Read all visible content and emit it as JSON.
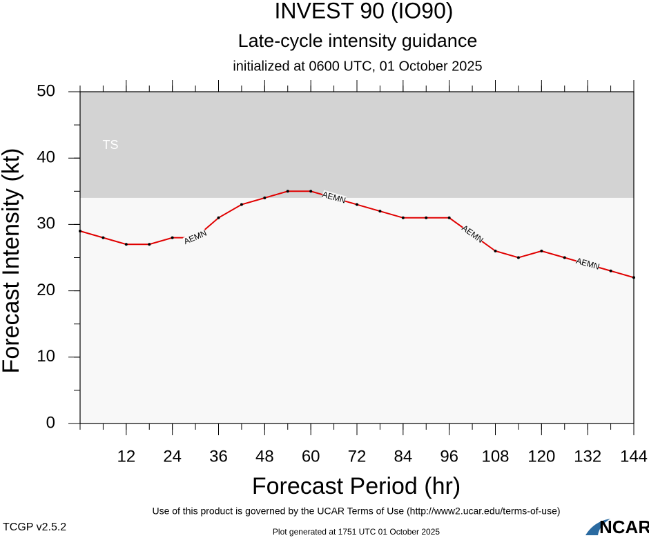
{
  "chart_data": {
    "type": "line",
    "title": "INVEST 90 (IO90)",
    "subtitle": "Late-cycle intensity guidance",
    "initialized": "initialized at 0600 UTC, 01 October 2025",
    "x_label": "Forecast Period (hr)",
    "y_label": "Forecast Intensity (kt)",
    "x": [
      0,
      6,
      12,
      18,
      24,
      30,
      36,
      42,
      48,
      54,
      60,
      66,
      72,
      78,
      84,
      90,
      96,
      102,
      108,
      114,
      120,
      126,
      132,
      138,
      144
    ],
    "series": [
      {
        "name": "AEMN",
        "color": "#e00000",
        "values": [
          29,
          28,
          27,
          27,
          28,
          28,
          31,
          33,
          34,
          35,
          35,
          34,
          33,
          32,
          31,
          31,
          31,
          28.5,
          26,
          25,
          26,
          25,
          24,
          23,
          22
        ]
      }
    ],
    "bands": [
      {
        "label": "TS",
        "from": 34,
        "to": 50,
        "color": "#d3d3d3"
      }
    ],
    "xlim": [
      0,
      144
    ],
    "xticks": [
      12,
      24,
      36,
      48,
      60,
      72,
      84,
      96,
      108,
      120,
      132,
      144
    ],
    "ylim": [
      0,
      50
    ],
    "yticks": [
      0,
      10,
      20,
      30,
      40,
      50
    ]
  },
  "footer": {
    "terms": "Use of this product is governed by the UCAR Terms of Use (http://www2.ucar.edu/terms-of-use)",
    "version": "TCGP v2.5.2",
    "generated": "Plot generated at 1751 UTC   01 October 2025",
    "logo": "NCAR"
  }
}
